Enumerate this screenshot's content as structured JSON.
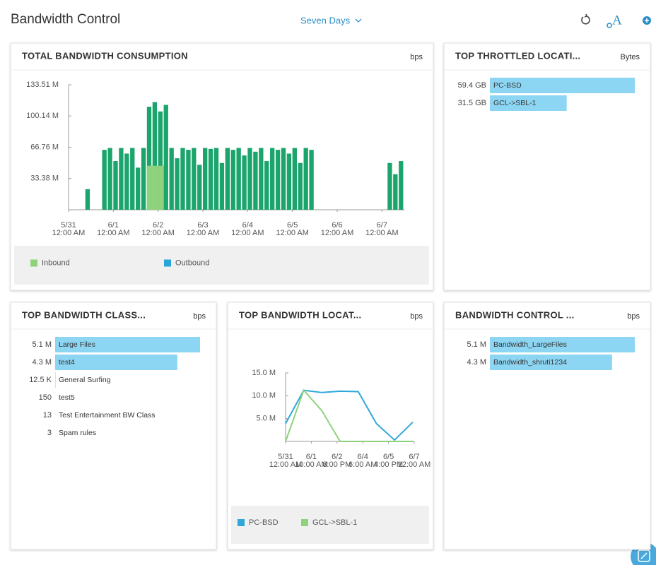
{
  "header": {
    "title": "Bandwidth Control",
    "range": "Seven Days"
  },
  "chart_data": [
    {
      "type": "bar",
      "title": "TOTAL BANDWIDTH CONSUMPTION",
      "unit": "bps",
      "xlim": [
        0,
        180
      ],
      "xticks": [
        {
          "value": 0,
          "label": [
            "5/31",
            "12:00 AM"
          ]
        },
        {
          "value": 24,
          "label": [
            "6/1",
            "12:00 AM"
          ]
        },
        {
          "value": 48,
          "label": [
            "6/2",
            "12:00 AM"
          ]
        },
        {
          "value": 72,
          "label": [
            "6/3",
            "12:00 AM"
          ]
        },
        {
          "value": 96,
          "label": [
            "6/4",
            "12:00 AM"
          ]
        },
        {
          "value": 120,
          "label": [
            "6/5",
            "12:00 AM"
          ]
        },
        {
          "value": 144,
          "label": [
            "6/6",
            "12:00 AM"
          ]
        },
        {
          "value": 168,
          "label": [
            "6/7",
            "12:00 AM"
          ]
        }
      ],
      "ylim": [
        0,
        133.51
      ],
      "yticks": [
        {
          "value": 33.38,
          "label": "33.38 M"
        },
        {
          "value": 66.76,
          "label": "66.76 M"
        },
        {
          "value": 100.14,
          "label": "100.14 M"
        },
        {
          "value": 133.51,
          "label": "133.51 M"
        }
      ],
      "series": [
        {
          "name": "Inbound",
          "color": "#8fd27c",
          "x": [
            42,
            45,
            48
          ],
          "values": [
            47,
            47,
            47
          ]
        },
        {
          "name": "Outbound",
          "color": "#1ba46c",
          "legend_color": "#2aa5d8",
          "x": [
            0,
            3,
            6,
            9,
            12,
            15,
            18,
            21,
            24,
            27,
            30,
            33,
            36,
            39,
            42,
            45,
            48,
            51,
            54,
            57,
            60,
            63,
            66,
            69,
            72,
            75,
            78,
            81,
            84,
            87,
            90,
            93,
            96,
            99,
            102,
            105,
            108,
            111,
            114,
            117,
            120,
            123,
            126,
            129,
            132,
            135,
            138,
            141,
            144,
            147,
            150,
            153,
            156,
            159,
            162,
            165,
            168,
            171,
            174,
            177
          ],
          "values": [
            0,
            0,
            0,
            22,
            0,
            0,
            64,
            66,
            52,
            66,
            60,
            66,
            45,
            66,
            110,
            115,
            105,
            112,
            66,
            55,
            66,
            64,
            66,
            48,
            66,
            65,
            66,
            50,
            66,
            64,
            66,
            58,
            66,
            62,
            66,
            52,
            66,
            64,
            66,
            60,
            66,
            50,
            66,
            64,
            0,
            0,
            0,
            0,
            0,
            0,
            0,
            0,
            0,
            0,
            0,
            0,
            0,
            50,
            38,
            52
          ]
        }
      ]
    },
    {
      "type": "hbar",
      "title": "TOP THROTTLED LOCATI...",
      "unit": "Bytes",
      "color": "#8dd6f3",
      "categories": [
        "PC-BSD",
        "GCL->SBL-1"
      ],
      "values": [
        59.4,
        31.5
      ],
      "value_labels": [
        "59.4 GB",
        "31.5 GB"
      ]
    },
    {
      "type": "hbar",
      "title": "TOP BANDWIDTH CLASS...",
      "unit": "bps",
      "color": "#8dd6f3",
      "categories": [
        "Large Files",
        "test4",
        "General Surfing",
        "test5",
        "Test Entertainment BW Class",
        "Spam rules"
      ],
      "values": [
        5100000,
        4300000,
        12500,
        150,
        13,
        3
      ],
      "value_labels": [
        "5.1 M",
        "4.3 M",
        "12.5 K",
        "150",
        "13",
        "3"
      ]
    },
    {
      "type": "line",
      "title": "TOP BANDWIDTH LOCAT...",
      "unit": "bps",
      "xlim": [
        0,
        170
      ],
      "xticks": [
        {
          "value": 0,
          "label": [
            "5/31",
            "12:00 AM"
          ]
        },
        {
          "value": 34,
          "label": [
            "6/1",
            "10:00 AM"
          ]
        },
        {
          "value": 68,
          "label": [
            "6/2",
            "8:00 PM"
          ]
        },
        {
          "value": 102,
          "label": [
            "6/4",
            "6:00 AM"
          ]
        },
        {
          "value": 136,
          "label": [
            "6/5",
            "4:00 PM"
          ]
        },
        {
          "value": 170,
          "label": [
            "6/7",
            "12:00 AM"
          ]
        }
      ],
      "ylim": [
        0,
        15
      ],
      "yticks": [
        {
          "value": 5,
          "label": "5.0 M"
        },
        {
          "value": 10,
          "label": "10.0 M"
        },
        {
          "value": 15,
          "label": "15.0 M"
        }
      ],
      "series": [
        {
          "name": "PC-BSD",
          "color": "#2fa8d9",
          "x": [
            0,
            24,
            48,
            72,
            96,
            120,
            144,
            168
          ],
          "values": [
            3.9,
            11.2,
            10.7,
            11,
            10.9,
            3.9,
            0.3,
            4.2
          ]
        },
        {
          "name": "GCL->SBL-1",
          "color": "#8fd27c",
          "x": [
            0,
            24,
            48,
            72,
            96,
            120,
            144,
            168
          ],
          "values": [
            0,
            11.2,
            6.7,
            0,
            0,
            0,
            0,
            0
          ]
        }
      ]
    },
    {
      "type": "hbar",
      "title": "BANDWIDTH CONTROL ...",
      "unit": "bps",
      "color": "#8dd6f3",
      "categories": [
        "Bandwidth_LargeFiles",
        "Bandwidth_shruti1234"
      ],
      "values": [
        5100000,
        4300000
      ],
      "value_labels": [
        "5.1 M",
        "4.3 M"
      ]
    }
  ]
}
